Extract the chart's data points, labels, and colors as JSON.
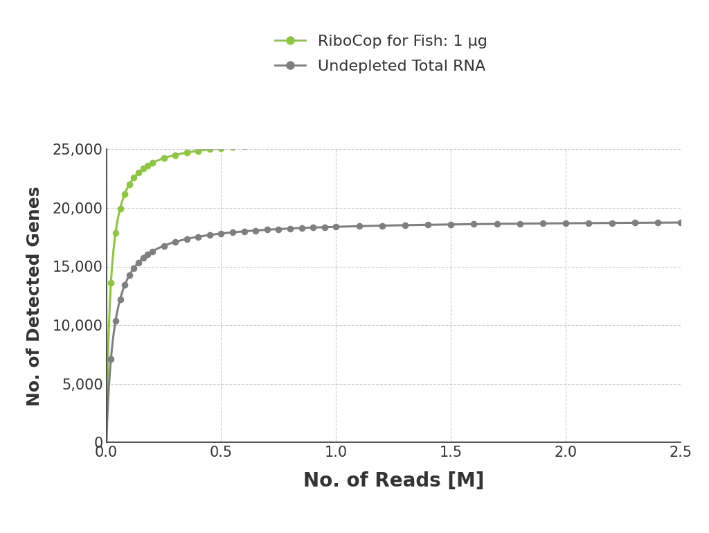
{
  "title": "",
  "xlabel": "No. of Reads [M]",
  "ylabel": "No. of Detected Genes",
  "xlim": [
    0,
    2.5
  ],
  "ylim": [
    0,
    25000
  ],
  "xticks": [
    0.0,
    0.5,
    1.0,
    1.5,
    2.0,
    2.5
  ],
  "yticks": [
    0,
    5000,
    10000,
    15000,
    20000,
    25000
  ],
  "ytick_labels": [
    "0",
    "5,000",
    "10,000",
    "15,000",
    "20,000",
    "25,000"
  ],
  "xtick_labels": [
    "0.0",
    "0.5",
    "1.0",
    "1.5",
    "2.0",
    "2.5"
  ],
  "green_label": "RiboCop for Fish: 1 μg",
  "gray_label": "Undepleted Total RNA",
  "green_color": "#8DC63F",
  "gray_color": "#7F7F7F",
  "background_color": "#ffffff",
  "grid_color": "#aaaaaa",
  "green_params": {
    "a": 26000,
    "b": 55.0
  },
  "gray_params": {
    "a": 19000,
    "b": 30.0
  },
  "dot_x_values": [
    0.02,
    0.04,
    0.06,
    0.08,
    0.1,
    0.12,
    0.14,
    0.16,
    0.18,
    0.2,
    0.25,
    0.3,
    0.35,
    0.4,
    0.45,
    0.5,
    0.55,
    0.6,
    0.65,
    0.7,
    0.75,
    0.8,
    0.85,
    0.9,
    0.95,
    1.0,
    1.1,
    1.2,
    1.3,
    1.4,
    1.5,
    1.6,
    1.7,
    1.8,
    1.9,
    2.0,
    2.1,
    2.2,
    2.3,
    2.4,
    2.5
  ],
  "dot_size": 35,
  "xlabel_fontsize": 20,
  "ylabel_fontsize": 18,
  "tick_fontsize": 15,
  "legend_fontsize": 16,
  "axis_label_color": "#333333",
  "spine_color": "#333333"
}
